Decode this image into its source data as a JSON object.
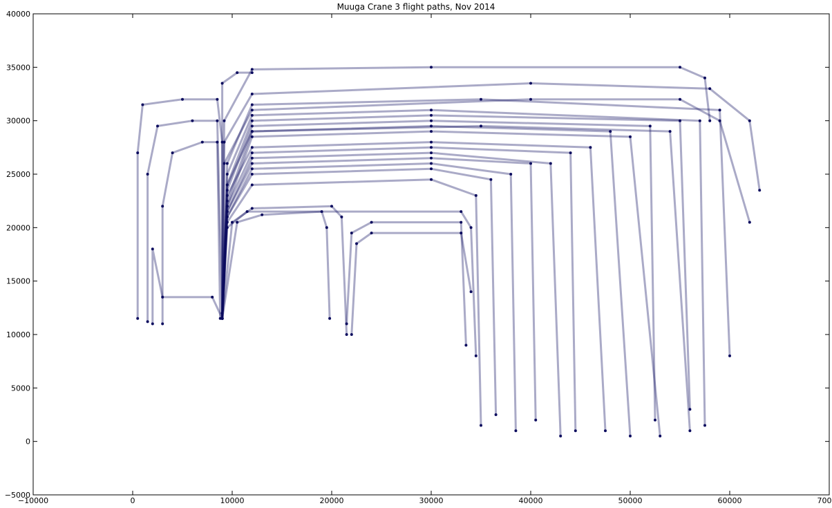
{
  "chart_data": {
    "type": "line",
    "title": "Muuga Crane 3 flight paths, Nov 2014",
    "xlabel": "",
    "ylabel": "",
    "xlim": [
      -10000,
      70000
    ],
    "ylim": [
      -5000,
      40000
    ],
    "xticks": [
      -10000,
      0,
      10000,
      20000,
      30000,
      40000,
      50000,
      60000,
      70000
    ],
    "xtick_labels": [
      "−10000",
      "0",
      "10000",
      "20000",
      "30000",
      "40000",
      "50000",
      "60000",
      "70000"
    ],
    "yticks": [
      -5000,
      0,
      5000,
      10000,
      15000,
      20000,
      25000,
      30000,
      35000,
      40000
    ],
    "ytick_labels": [
      "−5000",
      "0",
      "5000",
      "10000",
      "15000",
      "20000",
      "25000",
      "30000",
      "35000",
      "40000"
    ],
    "grid": false,
    "line_color": "#0b0b5e",
    "marker": "dot",
    "series": [
      {
        "x": [
          500,
          500,
          1000,
          5000,
          8500,
          9000,
          9000
        ],
        "y": [
          11500,
          27000,
          31500,
          32000,
          32000,
          28000,
          11500
        ]
      },
      {
        "x": [
          1500,
          1500,
          2500,
          6000,
          8500,
          9000
        ],
        "y": [
          11200,
          25000,
          29500,
          30000,
          30000,
          12000
        ]
      },
      {
        "x": [
          3000,
          3000,
          4000,
          7000,
          8500,
          8800
        ],
        "y": [
          11000,
          22000,
          27000,
          28000,
          28000,
          11500
        ]
      },
      {
        "x": [
          2000,
          2000,
          3000,
          8000,
          9000
        ],
        "y": [
          11000,
          18000,
          13500,
          13500,
          11500
        ]
      },
      {
        "x": [
          9000,
          9000,
          10500,
          12000
        ],
        "y": [
          11500,
          33500,
          34500,
          34500
        ]
      },
      {
        "x": [
          9000,
          9200,
          12000,
          30000,
          55000,
          57500,
          58000
        ],
        "y": [
          12000,
          30000,
          34800,
          35000,
          35000,
          34000,
          30000
        ]
      },
      {
        "x": [
          9000,
          9200,
          12000,
          40000,
          58000,
          62000,
          63000
        ],
        "y": [
          12000,
          28000,
          32500,
          33500,
          33000,
          30000,
          23500
        ]
      },
      {
        "x": [
          9000,
          9200,
          12000,
          40000,
          55000,
          59000,
          62000
        ],
        "y": [
          11500,
          26000,
          31000,
          32000,
          32000,
          30000,
          20500
        ]
      },
      {
        "x": [
          9000,
          9500,
          12000,
          35000,
          54000,
          56000
        ],
        "y": [
          11500,
          24000,
          29000,
          29500,
          29000,
          1000
        ]
      },
      {
        "x": [
          9000,
          9500,
          12000,
          30000,
          46000,
          47500
        ],
        "y": [
          11500,
          23000,
          27500,
          28000,
          27500,
          1000
        ]
      },
      {
        "x": [
          9000,
          9500,
          12000,
          30000,
          42000,
          43000
        ],
        "y": [
          11500,
          21500,
          26500,
          27000,
          26000,
          500
        ]
      },
      {
        "x": [
          9000,
          9500,
          12000,
          30000,
          38000,
          38500
        ],
        "y": [
          11500,
          21000,
          25500,
          26000,
          25000,
          1000
        ]
      },
      {
        "x": [
          9000,
          9500,
          12000,
          30000,
          34500,
          35000
        ],
        "y": [
          11500,
          20500,
          24000,
          24500,
          23000,
          1500
        ]
      },
      {
        "x": [
          9000,
          9500,
          11500,
          33000,
          34000,
          34500
        ],
        "y": [
          11500,
          20000,
          21500,
          21500,
          20000,
          8000
        ]
      },
      {
        "x": [
          9000,
          10000,
          12000,
          20000,
          21000,
          21500
        ],
        "y": [
          11500,
          20500,
          21800,
          22000,
          21000,
          10000
        ]
      },
      {
        "x": [
          9000,
          10500,
          13000,
          19000,
          19500,
          19800
        ],
        "y": [
          11500,
          20500,
          21200,
          21500,
          20000,
          11500
        ]
      },
      {
        "x": [
          21500,
          22000,
          24000,
          33000,
          33500
        ],
        "y": [
          11000,
          19500,
          20500,
          20500,
          9000
        ]
      },
      {
        "x": [
          22000,
          22500,
          24000,
          33000,
          34000
        ],
        "y": [
          10000,
          18500,
          19500,
          19500,
          14000
        ]
      },
      {
        "x": [
          9000,
          9500,
          12000,
          30000,
          50000,
          53000
        ],
        "y": [
          11500,
          22000,
          28500,
          29000,
          28500,
          500
        ]
      },
      {
        "x": [
          9000,
          9500,
          12000,
          30000,
          48000,
          50000
        ],
        "y": [
          11500,
          22500,
          29000,
          29500,
          29000,
          500
        ]
      },
      {
        "x": [
          9000,
          9500,
          12000,
          30000,
          57000,
          57500
        ],
        "y": [
          11500,
          25000,
          30500,
          31000,
          30000,
          1500
        ]
      },
      {
        "x": [
          9000,
          9500,
          12000,
          30000,
          44000,
          44500
        ],
        "y": [
          11500,
          22000,
          27000,
          27500,
          27000,
          1000
        ]
      },
      {
        "x": [
          9000,
          9500,
          12000,
          30000,
          40000,
          40500
        ],
        "y": [
          11500,
          21500,
          26000,
          26500,
          26000,
          2000
        ]
      },
      {
        "x": [
          9000,
          9500,
          12000,
          30000,
          36000,
          36500
        ],
        "y": [
          11500,
          21000,
          25000,
          25500,
          24500,
          2500
        ]
      },
      {
        "x": [
          9000,
          9500,
          12000,
          30000,
          52000,
          52500
        ],
        "y": [
          11500,
          23500,
          29500,
          30000,
          29500,
          2000
        ]
      },
      {
        "x": [
          9000,
          9500,
          12000,
          30000,
          55000,
          56000
        ],
        "y": [
          11500,
          24000,
          30000,
          30500,
          30000,
          3000
        ]
      },
      {
        "x": [
          9000,
          9500,
          12000,
          35000,
          59000,
          60000
        ],
        "y": [
          11500,
          26000,
          31500,
          32000,
          31000,
          8000
        ]
      }
    ]
  }
}
